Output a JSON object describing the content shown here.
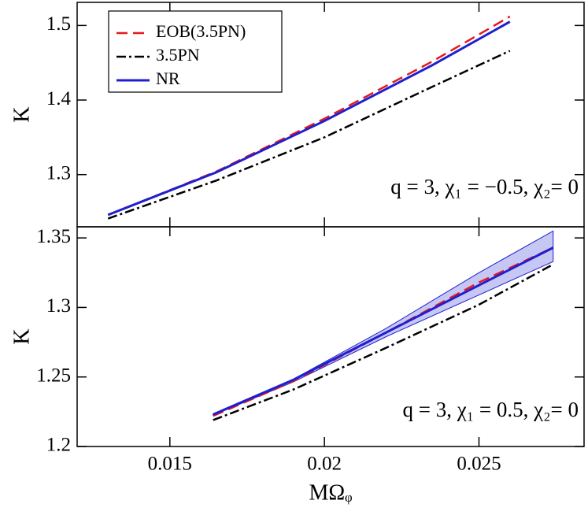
{
  "chart_data": [
    {
      "type": "line",
      "ylabel": "K",
      "xlim": [
        0.012,
        0.0284
      ],
      "ylim": [
        1.23,
        1.531
      ],
      "xticks": [
        0.015,
        0.02,
        0.025
      ],
      "yticks": [
        1.3,
        1.4,
        1.5
      ],
      "annotation": "q = 3, χ₁ = −0.5, χ₂= 0",
      "legend": "upper left",
      "x": [
        0.013,
        0.0165,
        0.02,
        0.0235,
        0.026
      ],
      "series": [
        {
          "name": "EOB(3.5PN)",
          "color": "#e41a1c",
          "style": "dashed",
          "values": [
            1.246,
            1.304,
            1.375,
            1.452,
            1.512
          ]
        },
        {
          "name": "3.5PN",
          "color": "#000000",
          "style": "dashdot",
          "values": [
            1.241,
            1.292,
            1.35,
            1.418,
            1.466
          ]
        },
        {
          "name": "NR",
          "color": "#1f1fd0",
          "style": "solid",
          "values": [
            1.246,
            1.303,
            1.372,
            1.447,
            1.505
          ]
        }
      ]
    },
    {
      "type": "line",
      "ylabel": "K",
      "xlabel": "MΩᵩ",
      "xlim": [
        0.012,
        0.0284
      ],
      "ylim": [
        1.2,
        1.358
      ],
      "xticks": [
        0.015,
        0.02,
        0.025
      ],
      "yticks": [
        1.2,
        1.25,
        1.3,
        1.35
      ],
      "annotation": "q = 3, χ₁ = 0.5,  χ₂= 0",
      "x": [
        0.0164,
        0.019,
        0.022,
        0.025,
        0.0274
      ],
      "nr_band": {
        "color": "#1f1fd0",
        "lower": [
          1.2225,
          1.2465,
          1.279,
          1.309,
          1.333
        ],
        "upper": [
          1.2235,
          1.2485,
          1.285,
          1.325,
          1.355
        ]
      },
      "series": [
        {
          "color": "#e41a1c",
          "style": "dashed",
          "values": [
            1.222,
            1.247,
            1.282,
            1.318,
            1.343
          ]
        },
        {
          "color": "#000000",
          "style": "dashdot",
          "values": [
            1.219,
            1.241,
            1.271,
            1.302,
            1.331
          ]
        },
        {
          "color": "#1f1fd0",
          "style": "solid",
          "values": [
            1.223,
            1.248,
            1.282,
            1.316,
            1.343
          ]
        }
      ]
    }
  ]
}
